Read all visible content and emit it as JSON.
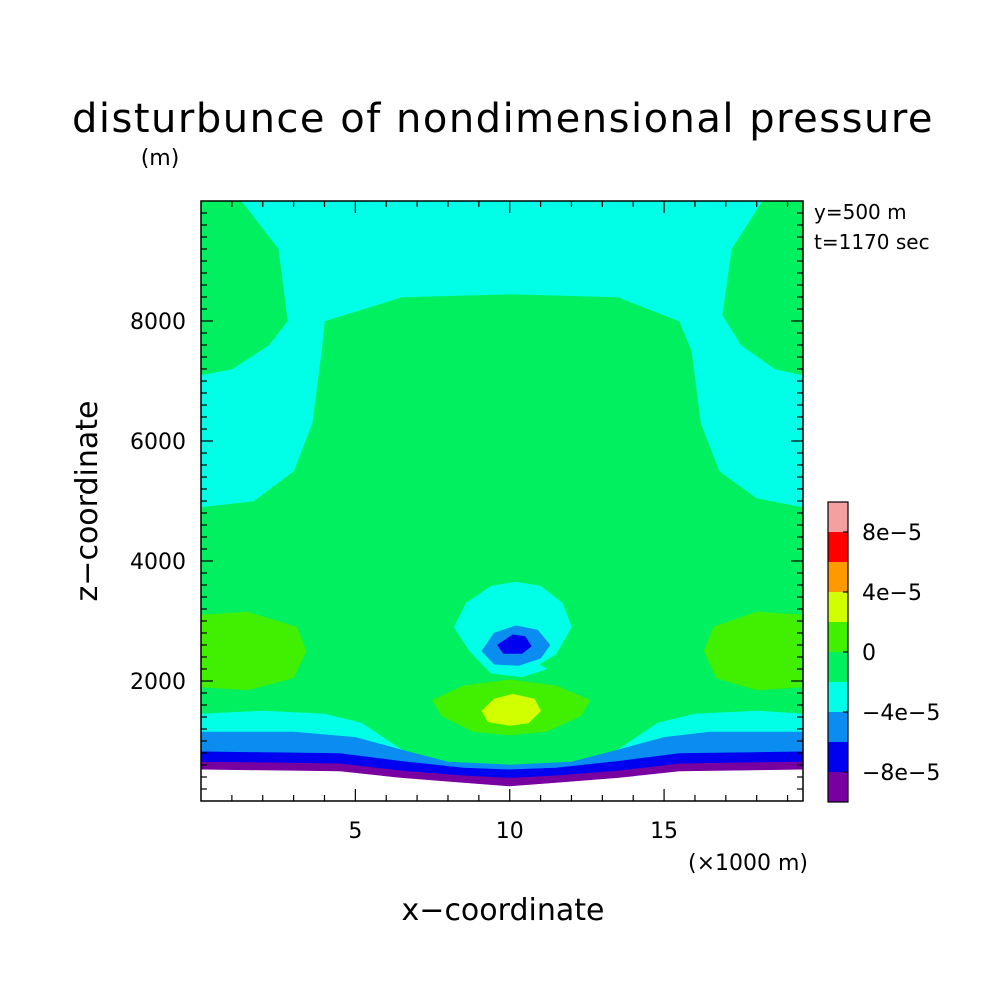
{
  "chart_data": {
    "type": "heatmap",
    "title": "disturbunce of nondimensional pressure",
    "units": "(m)",
    "xlabel": "x−coordinate",
    "x_unit_note": "(×1000 m)",
    "ylabel": "z−coordinate",
    "x_range": [
      0,
      19.5
    ],
    "y_range": [
      0,
      10000
    ],
    "x_ticks": [
      5,
      10,
      15
    ],
    "x_tick_labels": [
      "5",
      "10",
      "15"
    ],
    "y_ticks": [
      2000,
      4000,
      6000,
      8000
    ],
    "y_tick_labels": [
      "2000",
      "4000",
      "6000",
      "8000"
    ],
    "annotations": [
      "y=500 m",
      "t=1170 sec"
    ],
    "grid": false,
    "legend_position": "right",
    "colorbar": {
      "levels": [
        {
          "lower": 8e-05,
          "color": "#f5a0a0"
        },
        {
          "lower": 6e-05,
          "color": "#ff0000"
        },
        {
          "lower": 4e-05,
          "color": "#ff9900"
        },
        {
          "lower": 2e-05,
          "color": "#d2ff00"
        },
        {
          "lower": 0,
          "color": "#40f000"
        },
        {
          "lower": -2e-05,
          "color": "#00f060"
        },
        {
          "lower": -4e-05,
          "color": "#00ffe6"
        },
        {
          "lower": -6e-05,
          "color": "#0a8cf0"
        },
        {
          "lower": -8e-05,
          "color": "#0000f0"
        },
        {
          "lower": -0.0001,
          "color": "#7800a0"
        }
      ],
      "tick_labels": [
        "8e−5",
        "4e−5",
        "0",
        "−4e−5",
        "−8e−5"
      ]
    },
    "background_color": "#00f060",
    "regions": [
      {
        "color": "#00ffe6",
        "points": [
          [
            0,
            10000
          ],
          [
            19.5,
            10000
          ],
          [
            19.5,
            4900
          ],
          [
            18,
            5050
          ],
          [
            16.8,
            5500
          ],
          [
            16.2,
            6300
          ],
          [
            15.9,
            7500
          ],
          [
            15.5,
            8000
          ],
          [
            13.5,
            8400
          ],
          [
            10,
            8450
          ],
          [
            6.5,
            8400
          ],
          [
            4,
            8000
          ],
          [
            3.9,
            7500
          ],
          [
            3.6,
            6300
          ],
          [
            3,
            5500
          ],
          [
            1.7,
            5000
          ],
          [
            0,
            4900
          ]
        ]
      },
      {
        "color": "#00f060",
        "points": [
          [
            0,
            10000
          ],
          [
            1.3,
            10000
          ],
          [
            2.5,
            9200
          ],
          [
            2.8,
            8000
          ],
          [
            2.2,
            7600
          ],
          [
            1,
            7200
          ],
          [
            0,
            7100
          ]
        ]
      },
      {
        "color": "#00f060",
        "points": [
          [
            19.5,
            10000
          ],
          [
            18.2,
            10000
          ],
          [
            17.2,
            9200
          ],
          [
            16.9,
            8100
          ],
          [
            17.5,
            7600
          ],
          [
            18.6,
            7200
          ],
          [
            19.5,
            7100
          ]
        ]
      },
      {
        "color": "#40f000",
        "points": [
          [
            0,
            3100
          ],
          [
            1.5,
            3150
          ],
          [
            3.1,
            2900
          ],
          [
            3.4,
            2500
          ],
          [
            3,
            2050
          ],
          [
            1.5,
            1850
          ],
          [
            0,
            1900
          ]
        ]
      },
      {
        "color": "#40f000",
        "points": [
          [
            19.5,
            3100
          ],
          [
            18,
            3150
          ],
          [
            16.6,
            2900
          ],
          [
            16.3,
            2500
          ],
          [
            16.7,
            2050
          ],
          [
            18,
            1850
          ],
          [
            19.5,
            1900
          ]
        ]
      },
      {
        "color": "#00ffe6",
        "points": [
          [
            0,
            1450
          ],
          [
            2,
            1500
          ],
          [
            4,
            1450
          ],
          [
            5.2,
            1300
          ],
          [
            6.5,
            850
          ],
          [
            7.5,
            650
          ],
          [
            10,
            600
          ],
          [
            12.5,
            650
          ],
          [
            13.5,
            850
          ],
          [
            14.8,
            1300
          ],
          [
            16,
            1450
          ],
          [
            18,
            1500
          ],
          [
            19.5,
            1450
          ],
          [
            19.5,
            0
          ],
          [
            0,
            0
          ]
        ]
      },
      {
        "color": "#0a8cf0",
        "points": [
          [
            0,
            1150
          ],
          [
            3,
            1150
          ],
          [
            5,
            1060
          ],
          [
            6.5,
            850
          ],
          [
            8,
            650
          ],
          [
            10,
            600
          ],
          [
            12,
            650
          ],
          [
            13.5,
            850
          ],
          [
            15,
            1060
          ],
          [
            16.5,
            1150
          ],
          [
            19.5,
            1150
          ],
          [
            19.5,
            0
          ],
          [
            0,
            0
          ]
        ]
      },
      {
        "color": "#0000f0",
        "points": [
          [
            0,
            820
          ],
          [
            4.5,
            790
          ],
          [
            6.5,
            660
          ],
          [
            8.5,
            550
          ],
          [
            10,
            520
          ],
          [
            11.5,
            550
          ],
          [
            13.5,
            660
          ],
          [
            15.5,
            790
          ],
          [
            19.5,
            820
          ],
          [
            19.5,
            0
          ],
          [
            0,
            0
          ]
        ]
      },
      {
        "color": "#7800a0",
        "points": [
          [
            0,
            650
          ],
          [
            4.5,
            620
          ],
          [
            6.5,
            500
          ],
          [
            8.5,
            420
          ],
          [
            10,
            380
          ],
          [
            11.5,
            420
          ],
          [
            13.5,
            500
          ],
          [
            15.5,
            620
          ],
          [
            19.5,
            650
          ],
          [
            19.5,
            0
          ],
          [
            0,
            0
          ]
        ]
      },
      {
        "color": "#ffffff",
        "points": [
          [
            0,
            520
          ],
          [
            4.5,
            490
          ],
          [
            6.5,
            380
          ],
          [
            8.5,
            300
          ],
          [
            10,
            240
          ],
          [
            11.5,
            300
          ],
          [
            13.5,
            380
          ],
          [
            15.5,
            490
          ],
          [
            19.5,
            520
          ],
          [
            19.5,
            0
          ],
          [
            0,
            0
          ]
        ]
      },
      {
        "color": "#00ffe6",
        "points": [
          [
            10.2,
            3650
          ],
          [
            11,
            3580
          ],
          [
            11.7,
            3300
          ],
          [
            12,
            2900
          ],
          [
            11.5,
            2450
          ],
          [
            10.95,
            2280
          ],
          [
            11.2,
            2200
          ],
          [
            10.4,
            2070
          ],
          [
            9.4,
            2130
          ],
          [
            8.7,
            2500
          ],
          [
            8.2,
            2900
          ],
          [
            8.6,
            3300
          ],
          [
            9.4,
            3580
          ]
        ]
      },
      {
        "color": "#0a8cf0",
        "points": [
          [
            10.2,
            2920
          ],
          [
            10.9,
            2850
          ],
          [
            11.3,
            2600
          ],
          [
            11,
            2380
          ],
          [
            10.3,
            2260
          ],
          [
            9.5,
            2280
          ],
          [
            9.1,
            2500
          ],
          [
            9.5,
            2800
          ]
        ]
      },
      {
        "color": "#0000f0",
        "points": [
          [
            10.1,
            2770
          ],
          [
            10.5,
            2740
          ],
          [
            10.7,
            2580
          ],
          [
            10.4,
            2460
          ],
          [
            9.8,
            2460
          ],
          [
            9.6,
            2600
          ]
        ]
      },
      {
        "color": "#40f000",
        "points": [
          [
            10,
            2020
          ],
          [
            11.5,
            1920
          ],
          [
            12.6,
            1680
          ],
          [
            12.3,
            1420
          ],
          [
            11.2,
            1160
          ],
          [
            10,
            1100
          ],
          [
            8.8,
            1160
          ],
          [
            7.8,
            1420
          ],
          [
            7.5,
            1680
          ],
          [
            8.5,
            1920
          ]
        ]
      },
      {
        "color": "#d2ff00",
        "points": [
          [
            10.1,
            1780
          ],
          [
            10.8,
            1700
          ],
          [
            11,
            1500
          ],
          [
            10.6,
            1300
          ],
          [
            10,
            1260
          ],
          [
            9.3,
            1320
          ],
          [
            9.1,
            1500
          ],
          [
            9.5,
            1700
          ]
        ]
      }
    ]
  }
}
